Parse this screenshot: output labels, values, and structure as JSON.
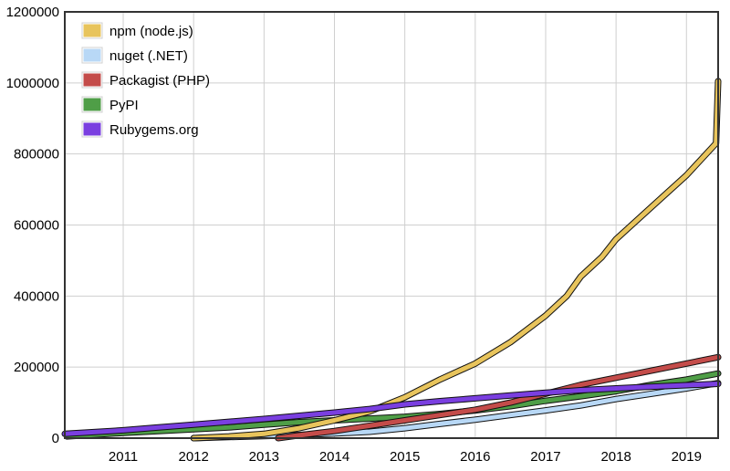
{
  "chart_data": {
    "type": "line",
    "title": "",
    "xlabel": "",
    "ylabel": "",
    "xlim": [
      2010.17,
      2019.45
    ],
    "ylim": [
      0,
      1200000
    ],
    "yticks": [
      0,
      200000,
      400000,
      600000,
      800000,
      1000000,
      1200000
    ],
    "ytick_labels": [
      "0",
      "200000",
      "400000",
      "600000",
      "800000",
      "1000000",
      "1200000"
    ],
    "xticks": [
      2011,
      2012,
      2013,
      2014,
      2015,
      2016,
      2017,
      2018,
      2019
    ],
    "xtick_labels": [
      "2011",
      "2012",
      "2013",
      "2014",
      "2015",
      "2016",
      "2017",
      "2018",
      "2019"
    ],
    "grid": true,
    "legend_position": "top-left",
    "series": [
      {
        "name": "npm (node.js)",
        "color": "#e8c45c",
        "points": [
          [
            2012.0,
            0
          ],
          [
            2012.5,
            5000
          ],
          [
            2013.0,
            12000
          ],
          [
            2013.5,
            28000
          ],
          [
            2014.0,
            50000
          ],
          [
            2014.5,
            75000
          ],
          [
            2015.0,
            115000
          ],
          [
            2015.5,
            165000
          ],
          [
            2016.0,
            210000
          ],
          [
            2016.5,
            270000
          ],
          [
            2017.0,
            345000
          ],
          [
            2017.3,
            400000
          ],
          [
            2017.5,
            455000
          ],
          [
            2017.8,
            510000
          ],
          [
            2018.0,
            560000
          ],
          [
            2018.5,
            650000
          ],
          [
            2019.0,
            740000
          ],
          [
            2019.42,
            830000
          ],
          [
            2019.45,
            1005000
          ]
        ]
      },
      {
        "name": "nuget (.NET)",
        "color": "#b8d8f6",
        "points": [
          [
            2012.0,
            0
          ],
          [
            2012.5,
            3000
          ],
          [
            2013.0,
            6000
          ],
          [
            2013.5,
            9000
          ],
          [
            2014.0,
            13000
          ],
          [
            2014.5,
            18000
          ],
          [
            2015.0,
            28000
          ],
          [
            2015.5,
            40000
          ],
          [
            2016.0,
            52000
          ],
          [
            2016.5,
            65000
          ],
          [
            2017.0,
            78000
          ],
          [
            2017.5,
            92000
          ],
          [
            2018.0,
            110000
          ],
          [
            2018.5,
            125000
          ],
          [
            2019.0,
            140000
          ],
          [
            2019.45,
            155000
          ]
        ]
      },
      {
        "name": "Packagist (PHP)",
        "color": "#c44c4a",
        "points": [
          [
            2013.2,
            0
          ],
          [
            2013.5,
            8000
          ],
          [
            2014.0,
            20000
          ],
          [
            2014.5,
            35000
          ],
          [
            2015.0,
            50000
          ],
          [
            2015.5,
            65000
          ],
          [
            2016.0,
            80000
          ],
          [
            2016.5,
            100000
          ],
          [
            2017.0,
            125000
          ],
          [
            2017.5,
            150000
          ],
          [
            2018.0,
            170000
          ],
          [
            2018.5,
            190000
          ],
          [
            2019.0,
            210000
          ],
          [
            2019.45,
            228000
          ]
        ]
      },
      {
        "name": "PyPI",
        "color": "#4f9e47",
        "points": [
          [
            2010.2,
            5000
          ],
          [
            2011.0,
            15000
          ],
          [
            2011.5,
            20000
          ],
          [
            2012.0,
            25000
          ],
          [
            2012.5,
            30000
          ],
          [
            2013.0,
            38000
          ],
          [
            2013.5,
            45000
          ],
          [
            2014.0,
            50000
          ],
          [
            2014.5,
            55000
          ],
          [
            2015.0,
            60000
          ],
          [
            2015.5,
            68000
          ],
          [
            2016.0,
            78000
          ],
          [
            2016.5,
            90000
          ],
          [
            2017.0,
            105000
          ],
          [
            2017.5,
            118000
          ],
          [
            2018.0,
            132000
          ],
          [
            2018.5,
            150000
          ],
          [
            2019.0,
            165000
          ],
          [
            2019.45,
            182000
          ]
        ]
      },
      {
        "name": "Rubygems.org",
        "color": "#7a3fe0",
        "points": [
          [
            2010.17,
            12000
          ],
          [
            2010.5,
            16000
          ],
          [
            2011.0,
            22000
          ],
          [
            2011.5,
            30000
          ],
          [
            2012.0,
            38000
          ],
          [
            2012.5,
            46000
          ],
          [
            2013.0,
            54000
          ],
          [
            2013.5,
            63000
          ],
          [
            2014.0,
            72000
          ],
          [
            2014.5,
            82000
          ],
          [
            2015.0,
            95000
          ],
          [
            2015.5,
            104000
          ],
          [
            2016.0,
            112000
          ],
          [
            2016.5,
            120000
          ],
          [
            2017.0,
            128000
          ],
          [
            2017.5,
            135000
          ],
          [
            2018.0,
            140000
          ],
          [
            2018.5,
            145000
          ],
          [
            2019.0,
            149000
          ],
          [
            2019.45,
            153000
          ]
        ]
      }
    ]
  }
}
